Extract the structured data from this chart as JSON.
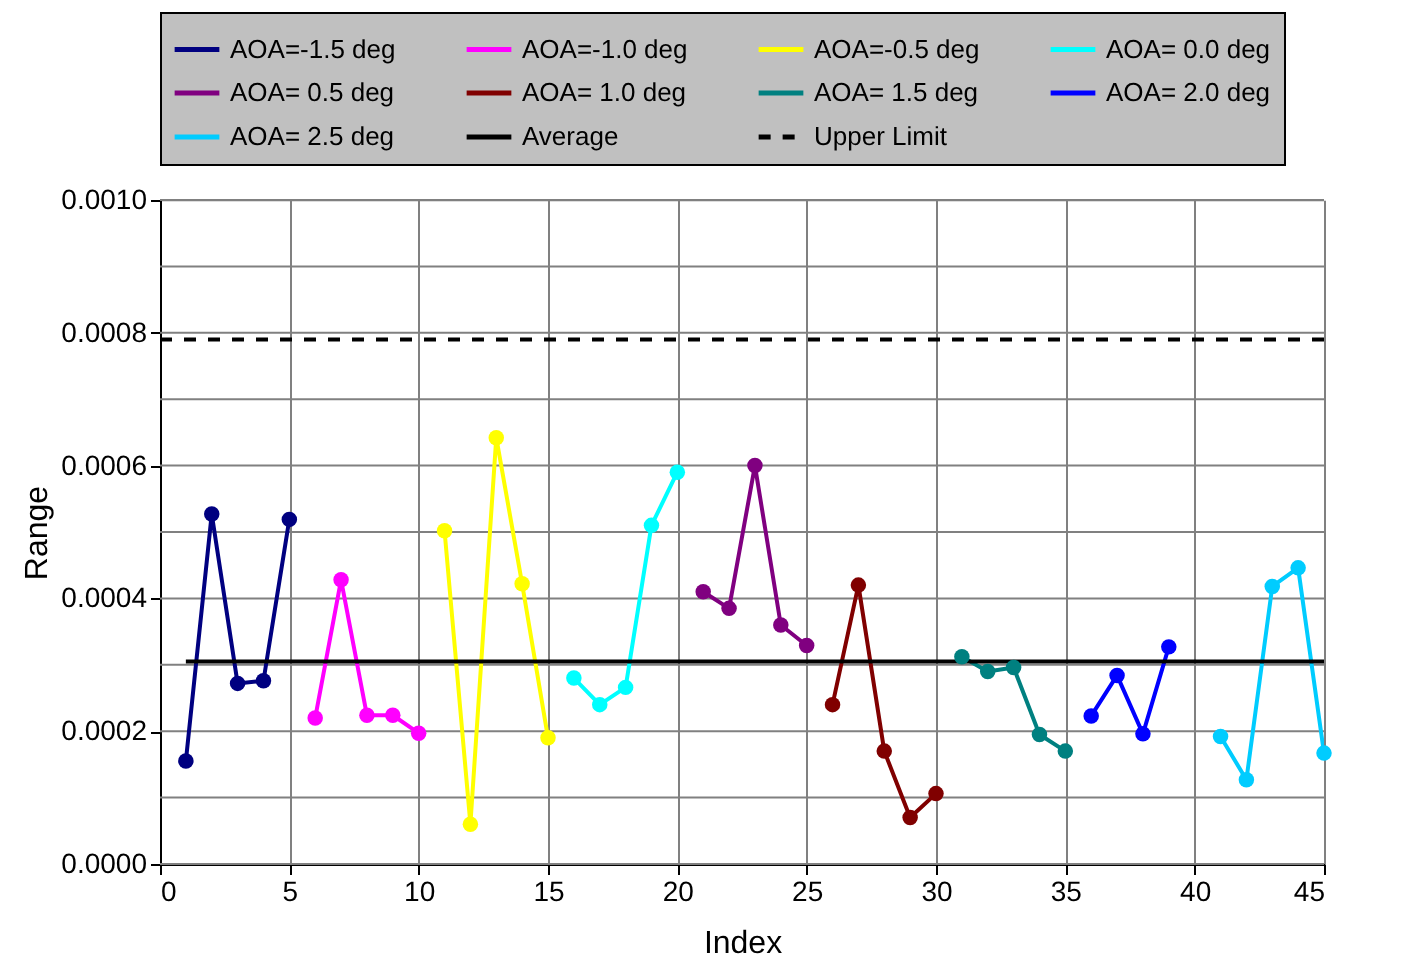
{
  "chart_data": {
    "type": "line",
    "xlabel": "Index",
    "ylabel": "Range",
    "xlim": [
      0,
      45
    ],
    "xticks": [
      0,
      5,
      10,
      15,
      20,
      25,
      30,
      35,
      40,
      45
    ],
    "ylim": [
      0,
      0.001
    ],
    "yticks": [
      {
        "value": 0,
        "label": "0.0000"
      },
      {
        "value": 0.0001,
        "label": null
      },
      {
        "value": 0.0002,
        "label": "0.0002"
      },
      {
        "value": 0.0003,
        "label": null
      },
      {
        "value": 0.0004,
        "label": "0.0004"
      },
      {
        "value": 0.0005,
        "label": null
      },
      {
        "value": 0.0006,
        "label": "0.0006"
      },
      {
        "value": 0.0007,
        "label": null
      },
      {
        "value": 0.0008,
        "label": "0.0008"
      },
      {
        "value": 0.0009,
        "label": null
      },
      {
        "value": 0.001,
        "label": "0.0010"
      }
    ],
    "grid": true,
    "legend": "top",
    "series": [
      {
        "name": "AOA=-1.5 deg",
        "color": "#000080",
        "marker": "circle",
        "x": [
          1,
          2,
          3,
          4,
          5
        ],
        "values": [
          0.000155,
          0.000527,
          0.000272,
          0.000276,
          0.000519
        ]
      },
      {
        "name": "AOA=-1.0 deg",
        "color": "#ff00ff",
        "marker": "circle",
        "x": [
          6,
          7,
          8,
          9,
          10
        ],
        "values": [
          0.00022,
          0.000428,
          0.000224,
          0.000224,
          0.000197
        ]
      },
      {
        "name": "AOA=-0.5 deg",
        "color": "#ffff00",
        "marker": "circle",
        "x": [
          11,
          12,
          13,
          14,
          15
        ],
        "values": [
          0.000502,
          6e-05,
          0.000642,
          0.000422,
          0.00019
        ]
      },
      {
        "name": "AOA= 0.0 deg",
        "color": "#00ffff",
        "marker": "circle",
        "x": [
          16,
          17,
          18,
          19,
          20
        ],
        "values": [
          0.00028,
          0.00024,
          0.000266,
          0.00051,
          0.00059
        ]
      },
      {
        "name": "AOA= 0.5 deg",
        "color": "#800080",
        "marker": "circle",
        "x": [
          21,
          22,
          23,
          24,
          25
        ],
        "values": [
          0.00041,
          0.000385,
          0.0006,
          0.00036,
          0.000329
        ]
      },
      {
        "name": "AOA= 1.0 deg",
        "color": "#800000",
        "marker": "circle",
        "x": [
          26,
          27,
          28,
          29,
          30
        ],
        "values": [
          0.00024,
          0.00042,
          0.00017,
          7e-05,
          0.000106
        ]
      },
      {
        "name": "AOA= 1.5 deg",
        "color": "#008080",
        "marker": "circle",
        "x": [
          31,
          32,
          33,
          34,
          35
        ],
        "values": [
          0.000312,
          0.00029,
          0.000296,
          0.000195,
          0.00017
        ]
      },
      {
        "name": "AOA= 2.0 deg",
        "color": "#0000ff",
        "marker": "circle",
        "x": [
          36,
          37,
          38,
          39
        ],
        "values": [
          0.000223,
          0.000284,
          0.000196,
          0.000327
        ]
      },
      {
        "name": "AOA= 2.5 deg",
        "color": "#00ccff",
        "marker": "circle",
        "x": [
          41,
          42,
          43,
          44,
          45
        ],
        "values": [
          0.000192,
          0.000127,
          0.000418,
          0.000446,
          0.000167
        ]
      },
      {
        "name": "Average",
        "color": "#000000",
        "marker": "none",
        "line_style": "solid",
        "x": [
          1,
          45
        ],
        "values": [
          0.000305,
          0.000305
        ]
      },
      {
        "name": "Upper Limit",
        "color": "#000000",
        "marker": "none",
        "line_style": "dashed",
        "x": [
          0,
          45
        ],
        "values": [
          0.00079,
          0.00079
        ]
      }
    ]
  }
}
